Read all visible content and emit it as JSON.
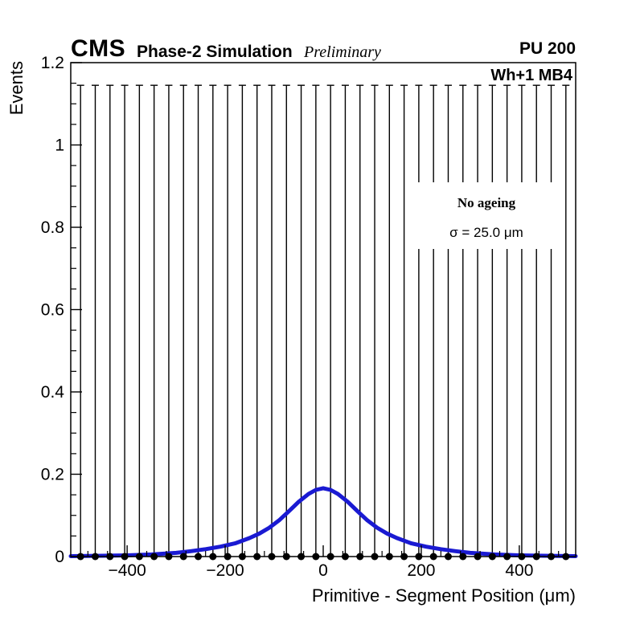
{
  "header": {
    "experiment": "CMS",
    "label": "Phase-2 Simulation",
    "sublabel": "Preliminary",
    "pileup": "PU 200"
  },
  "plot": {
    "region_label": "Wh+1 MB4",
    "legend": {
      "line1": "No ageing",
      "line2": "σ = 25.0 μm"
    }
  },
  "chart_data": {
    "type": "line+scatter",
    "title": "",
    "xlabel": "Primitive - Segment Position (μm)",
    "ylabel": "Events",
    "xlim": [
      -515,
      515
    ],
    "ylim": [
      0,
      1.2
    ],
    "grid": false,
    "legend_position": "upper-right-inside",
    "x_major_ticks": [
      -400,
      -200,
      0,
      200,
      400
    ],
    "x_tick_labels": [
      "−400",
      "−200",
      "0",
      "200",
      "400"
    ],
    "x_minor_step": 40,
    "y_major_ticks": [
      0,
      0.2,
      0.4,
      0.6,
      0.8,
      1,
      1.2
    ],
    "y_tick_labels": [
      "0",
      "0.2",
      "0.4",
      "0.6",
      "0.8",
      "1",
      "1.2"
    ],
    "y_minor_step": 0.05,
    "colors": {
      "curve": "#1a1ad2",
      "markers": "#000000",
      "error_bars": "#000000"
    },
    "series": [
      {
        "name": "data-points",
        "type": "scatter",
        "marker": "filled-circle",
        "color": "#000000",
        "x": [
          -495,
          -465,
          -435,
          -405,
          -375,
          -345,
          -315,
          -285,
          -255,
          -225,
          -195,
          -165,
          -135,
          -105,
          -75,
          -45,
          -15,
          15,
          45,
          75,
          105,
          135,
          165,
          195,
          225,
          255,
          285,
          315,
          345,
          375,
          405,
          435,
          465,
          495
        ],
        "y_value": 0.0,
        "y_error_top": 1.145
      },
      {
        "name": "fit-curve",
        "type": "line",
        "color": "#1a1ad2",
        "x": [
          -515,
          -450,
          -400,
          -350,
          -300,
          -270,
          -240,
          -210,
          -180,
          -150,
          -130,
          -110,
          -90,
          -70,
          -50,
          -30,
          -15,
          0,
          15,
          30,
          50,
          70,
          90,
          110,
          130,
          150,
          180,
          210,
          240,
          270,
          300,
          350,
          400,
          450,
          515
        ],
        "y": [
          0.001,
          0.002,
          0.003,
          0.005,
          0.009,
          0.013,
          0.018,
          0.024,
          0.032,
          0.045,
          0.056,
          0.07,
          0.088,
          0.11,
          0.133,
          0.152,
          0.162,
          0.166,
          0.162,
          0.152,
          0.133,
          0.11,
          0.088,
          0.07,
          0.056,
          0.045,
          0.032,
          0.024,
          0.018,
          0.013,
          0.009,
          0.005,
          0.003,
          0.002,
          0.001
        ]
      }
    ]
  }
}
